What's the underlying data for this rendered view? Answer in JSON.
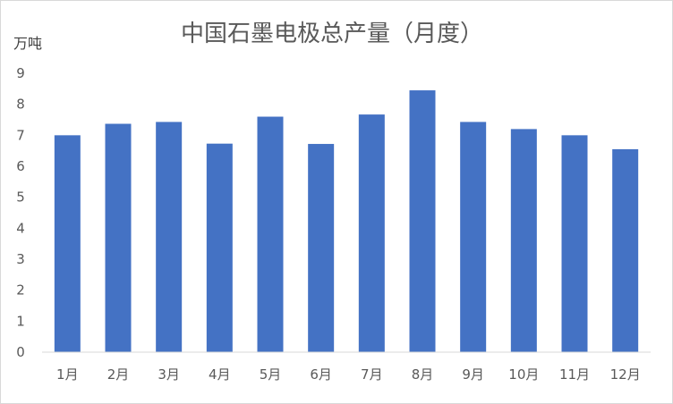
{
  "chart_data": {
    "type": "bar",
    "title": "中国石墨电极总产量（月度）",
    "ylabel": "万吨",
    "xlabel": "",
    "categories": [
      "1月",
      "2月",
      "3月",
      "4月",
      "5月",
      "6月",
      "7月",
      "8月",
      "9月",
      "10月",
      "11月",
      "12月"
    ],
    "values": [
      7.0,
      7.37,
      7.43,
      6.73,
      7.6,
      6.72,
      7.67,
      8.45,
      7.43,
      7.2,
      7.0,
      6.55
    ],
    "ylim": [
      0,
      9
    ],
    "yticks": [
      0,
      1,
      2,
      3,
      4,
      5,
      6,
      7,
      8,
      9
    ],
    "grid": false,
    "legend": "none",
    "bar_color": "#4472c4",
    "axis_color": "#d9d9d9"
  }
}
